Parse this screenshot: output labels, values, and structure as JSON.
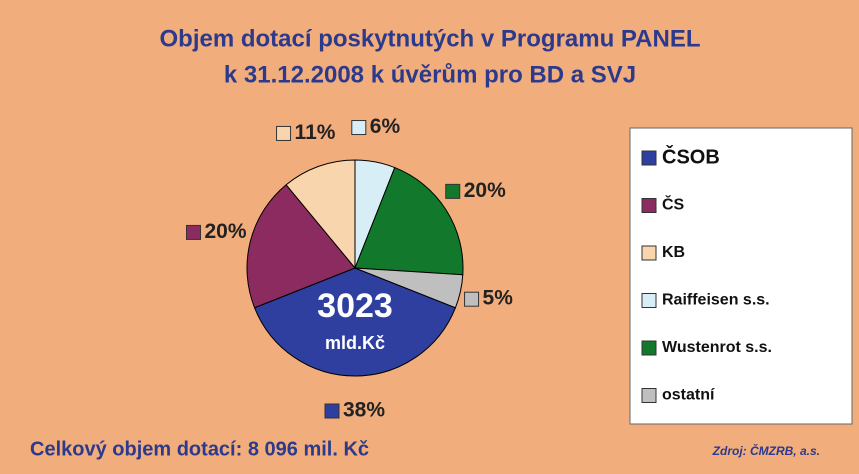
{
  "chart_data": {
    "type": "pie",
    "title": "Objem dotací poskytnutých v Programu PANEL",
    "subtitle": "k 31.12.2008 k úvěrům pro BD a SVJ",
    "categories": [
      "ČSOB",
      "ČS",
      "KB",
      "Raiffeisen s.s.",
      "Wustenrot s.s.",
      "ostatní"
    ],
    "values": [
      38,
      20,
      11,
      6,
      20,
      5
    ],
    "value_labels": [
      "38%",
      "20%",
      "11%",
      "6%",
      "20%",
      "5%"
    ],
    "colors": [
      "#2f3f9f",
      "#8c2b60",
      "#f9d5ae",
      "#d8eef6",
      "#12792c",
      "#bfbfbf"
    ],
    "center_label": [
      "3023",
      "mld.Kč"
    ],
    "footer": "Celkový objem dotací:  8 096 mil. Kč",
    "source": "Zdroj: ČMZRB, a.s.",
    "legend": "right"
  }
}
